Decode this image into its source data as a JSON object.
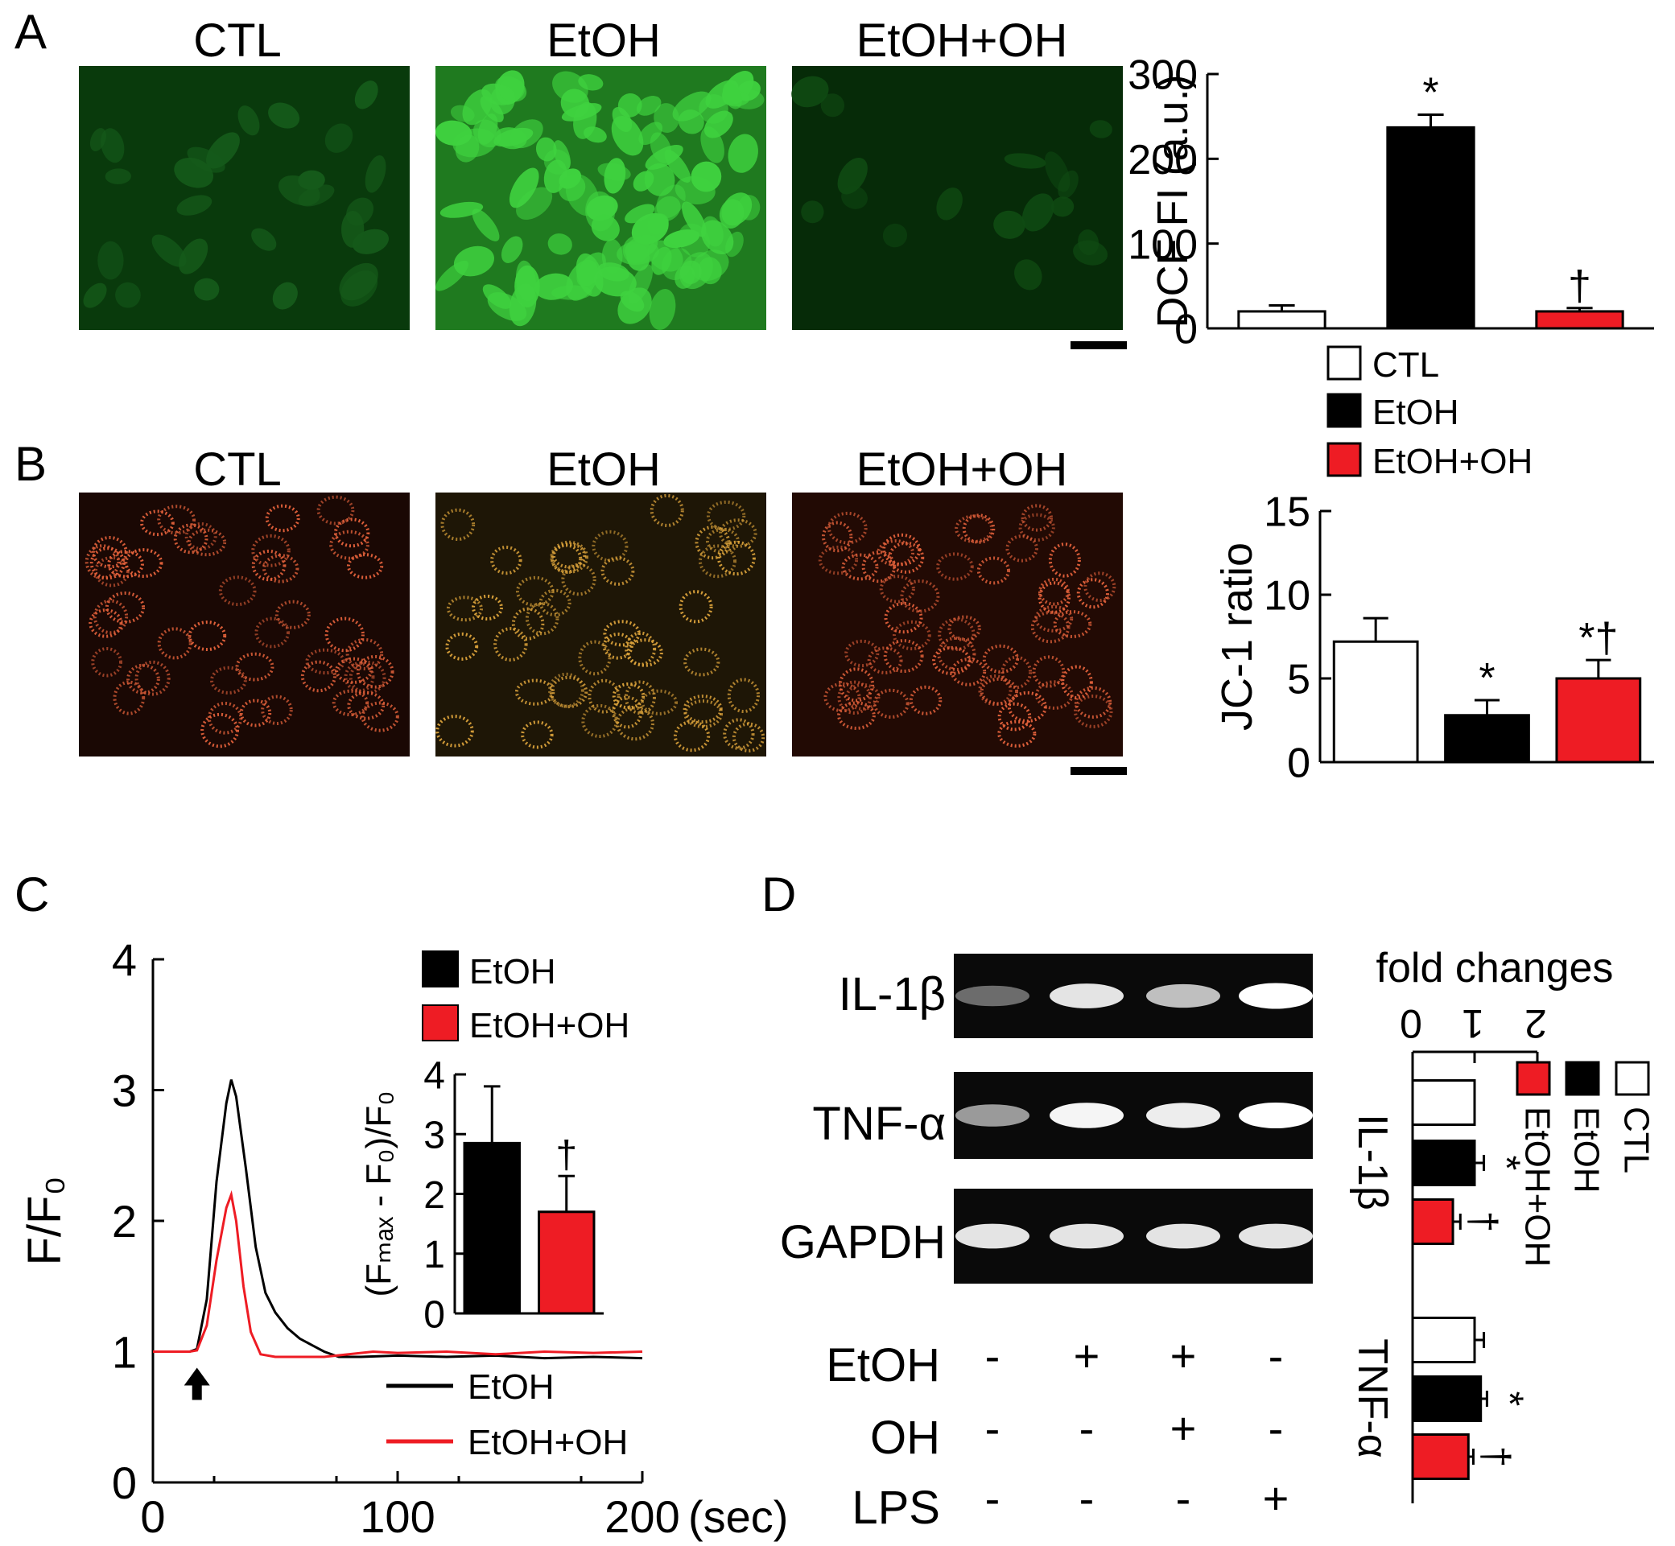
{
  "panels": {
    "a": {
      "letter": "A",
      "micrographs": [
        {
          "label": "CTL",
          "tone": "#093a0c",
          "cell_color": "#155a1a",
          "density": 0.25
        },
        {
          "label": "EtOH",
          "tone": "#1f7a1f",
          "cell_color": "#3fd23f",
          "density": 1.0
        },
        {
          "label": "EtOH+OH",
          "tone": "#062b08",
          "cell_color": "#0f4a12",
          "density": 0.15
        }
      ]
    },
    "b": {
      "letter": "B",
      "micrographs": [
        {
          "label": "CTL",
          "tone": "#1a0804",
          "dot_color": "#e0603a",
          "density": 0.8
        },
        {
          "label": "EtOH",
          "tone": "#1e1606",
          "dot_color": "#d8a03a",
          "density": 0.8
        },
        {
          "label": "EtOH+OH",
          "tone": "#220a04",
          "dot_color": "#e0603a",
          "density": 0.9
        }
      ]
    },
    "c": {
      "letter": "C"
    },
    "d": {
      "letter": "D"
    }
  },
  "legend_a": [
    {
      "label": "CTL",
      "color": "#ffffff"
    },
    {
      "label": "EtOH",
      "color": "#000000"
    },
    {
      "label": "EtOH+OH",
      "color": "#ee1c24"
    }
  ],
  "gel": {
    "rows": [
      "IL-1β",
      "TNF-α",
      "GAPDH"
    ],
    "treatments": [
      {
        "name": "EtOH",
        "signs": [
          "-",
          "+",
          "+",
          "-"
        ]
      },
      {
        "name": "OH",
        "signs": [
          "-",
          "-",
          "+",
          "-"
        ]
      },
      {
        "name": "LPS",
        "signs": [
          "-",
          "-",
          "-",
          "+"
        ]
      }
    ]
  },
  "chart_data": [
    {
      "id": "dcf",
      "type": "bar",
      "ylabel": "DCF FI (a.u.)",
      "ylim": [
        0,
        300
      ],
      "yticks": [
        0,
        100,
        200,
        300
      ],
      "categories": [
        "CTL",
        "EtOH",
        "EtOH+OH"
      ],
      "values": [
        20,
        237,
        20
      ],
      "errors": [
        7,
        15,
        4
      ],
      "colors": [
        "#ffffff",
        "#000000",
        "#ee1c24"
      ],
      "annotations": [
        "",
        "*",
        "†"
      ]
    },
    {
      "id": "jc1",
      "type": "bar",
      "ylabel": "JC-1 ratio",
      "ylim": [
        0,
        15
      ],
      "yticks": [
        0,
        5,
        10,
        15
      ],
      "categories": [
        "CTL",
        "EtOH",
        "EtOH+OH"
      ],
      "values": [
        7.2,
        2.8,
        5.0
      ],
      "errors": [
        1.4,
        0.9,
        1.1
      ],
      "colors": [
        "#ffffff",
        "#000000",
        "#ee1c24"
      ],
      "annotations": [
        "",
        "*",
        "*†"
      ]
    },
    {
      "id": "trace",
      "type": "line",
      "ylabel": "F/F₀",
      "xlabel": "(sec)",
      "xlim": [
        0,
        200
      ],
      "ylim": [
        0,
        4
      ],
      "xticks": [
        0,
        100,
        200
      ],
      "yticks": [
        0,
        1,
        2,
        3,
        4
      ],
      "series": [
        {
          "name": "EtOH",
          "color": "#000000",
          "x": [
            0,
            10,
            15,
            18,
            22,
            26,
            30,
            32,
            34,
            38,
            42,
            46,
            50,
            55,
            60,
            65,
            70,
            76,
            85,
            100,
            120,
            140,
            160,
            180,
            200
          ],
          "y": [
            1,
            1,
            1,
            1.02,
            1.4,
            2.3,
            2.9,
            3.08,
            2.95,
            2.4,
            1.8,
            1.45,
            1.3,
            1.18,
            1.1,
            1.05,
            1.0,
            0.96,
            0.96,
            0.97,
            0.96,
            0.97,
            0.95,
            0.96,
            0.95
          ]
        },
        {
          "name": "EtOH+OH",
          "color": "#ee1c24",
          "x": [
            0,
            10,
            15,
            18,
            22,
            26,
            30,
            32,
            34,
            37,
            40,
            44,
            50,
            60,
            70,
            80,
            90,
            100,
            120,
            140,
            160,
            180,
            200
          ],
          "y": [
            1,
            1,
            1,
            1.01,
            1.2,
            1.7,
            2.1,
            2.2,
            2.0,
            1.5,
            1.15,
            0.98,
            0.96,
            0.96,
            0.96,
            0.98,
            1.0,
            0.99,
            1.0,
            0.98,
            1.0,
            0.99,
            1.0
          ]
        }
      ],
      "stimulus_x": 18,
      "legend_top": [
        "EtOH",
        "EtOH+OH"
      ],
      "legend_bottom": [
        "EtOH",
        "EtOH+OH"
      ]
    },
    {
      "id": "inset",
      "type": "bar",
      "ylabel": "(Fₘₐₓ - F₀)/F₀",
      "ylim": [
        0,
        4
      ],
      "yticks": [
        0,
        1,
        2,
        3,
        4
      ],
      "categories": [
        "EtOH",
        "EtOH+OH"
      ],
      "values": [
        2.85,
        1.7
      ],
      "errors": [
        0.95,
        0.6
      ],
      "colors": [
        "#000000",
        "#ee1c24"
      ],
      "annotations": [
        "",
        "†"
      ]
    },
    {
      "id": "fold",
      "type": "bar",
      "orientation": "horizontal",
      "xlabel": "fold changes",
      "xlim": [
        0,
        2
      ],
      "xticks": [
        0,
        1,
        2
      ],
      "groups": [
        "IL-1β",
        "TNF-α"
      ],
      "series": [
        {
          "name": "CTL",
          "color": "#ffffff",
          "values": [
            1.0,
            1.0
          ],
          "errors": [
            0,
            0.15
          ],
          "annotations": [
            "",
            ""
          ]
        },
        {
          "name": "EtOH",
          "color": "#000000",
          "values": [
            1.0,
            1.1
          ],
          "errors": [
            0.15,
            0.1
          ],
          "annotations": [
            "*",
            "*"
          ]
        },
        {
          "name": "EtOH+OH",
          "color": "#ee1c24",
          "values": [
            0.65,
            0.9
          ],
          "errors": [
            0.12,
            0.08
          ],
          "annotations": [
            "†",
            "†"
          ]
        }
      ]
    }
  ]
}
